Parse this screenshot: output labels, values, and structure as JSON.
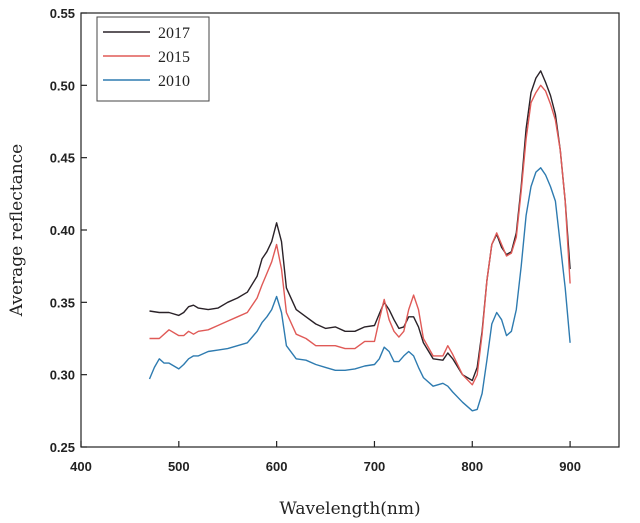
{
  "chart_data": {
    "type": "line",
    "xlabel": "Wavelength(nm)",
    "ylabel": "Average reflectance",
    "xlim": [
      400,
      950
    ],
    "ylim": [
      0.25,
      0.55
    ],
    "x_ticks": [
      400,
      500,
      600,
      700,
      800,
      900
    ],
    "y_ticks": [
      "0.25",
      "0.30",
      "0.35",
      "0.40",
      "0.45",
      "0.50",
      "0.55"
    ],
    "legend_position": "top-left",
    "grid": false,
    "series": [
      {
        "name": "2017",
        "color": "#2a2228",
        "x": [
          470,
          480,
          490,
          500,
          505,
          510,
          515,
          520,
          530,
          540,
          550,
          560,
          570,
          580,
          585,
          590,
          595,
          600,
          605,
          610,
          620,
          630,
          640,
          650,
          660,
          670,
          680,
          690,
          700,
          705,
          710,
          715,
          720,
          725,
          730,
          735,
          740,
          745,
          750,
          760,
          770,
          775,
          780,
          790,
          800,
          805,
          810,
          815,
          820,
          825,
          830,
          835,
          840,
          845,
          850,
          855,
          860,
          865,
          870,
          875,
          880,
          885,
          890,
          895,
          900
        ],
        "y": [
          0.344,
          0.343,
          0.343,
          0.341,
          0.343,
          0.347,
          0.348,
          0.346,
          0.345,
          0.346,
          0.35,
          0.353,
          0.357,
          0.368,
          0.38,
          0.385,
          0.392,
          0.405,
          0.392,
          0.36,
          0.345,
          0.34,
          0.335,
          0.332,
          0.333,
          0.33,
          0.33,
          0.333,
          0.334,
          0.342,
          0.35,
          0.345,
          0.338,
          0.332,
          0.333,
          0.34,
          0.34,
          0.333,
          0.322,
          0.311,
          0.31,
          0.315,
          0.311,
          0.3,
          0.296,
          0.305,
          0.33,
          0.365,
          0.39,
          0.397,
          0.388,
          0.383,
          0.385,
          0.398,
          0.43,
          0.47,
          0.495,
          0.505,
          0.51,
          0.502,
          0.493,
          0.48,
          0.455,
          0.42,
          0.373
        ]
      },
      {
        "name": "2015",
        "color": "#e05a57",
        "x": [
          470,
          480,
          490,
          500,
          505,
          510,
          515,
          520,
          530,
          540,
          550,
          560,
          570,
          580,
          585,
          590,
          595,
          600,
          605,
          610,
          620,
          630,
          640,
          650,
          660,
          670,
          680,
          690,
          700,
          705,
          710,
          715,
          720,
          725,
          730,
          735,
          740,
          745,
          750,
          760,
          770,
          775,
          780,
          790,
          800,
          805,
          810,
          815,
          820,
          825,
          830,
          835,
          840,
          845,
          850,
          855,
          860,
          865,
          870,
          875,
          880,
          885,
          890,
          895,
          900
        ],
        "y": [
          0.325,
          0.325,
          0.331,
          0.327,
          0.327,
          0.33,
          0.328,
          0.33,
          0.331,
          0.334,
          0.337,
          0.34,
          0.343,
          0.353,
          0.362,
          0.37,
          0.378,
          0.39,
          0.373,
          0.343,
          0.328,
          0.325,
          0.32,
          0.32,
          0.32,
          0.318,
          0.318,
          0.323,
          0.323,
          0.338,
          0.352,
          0.338,
          0.33,
          0.326,
          0.33,
          0.345,
          0.355,
          0.345,
          0.325,
          0.313,
          0.313,
          0.32,
          0.314,
          0.3,
          0.293,
          0.3,
          0.328,
          0.365,
          0.39,
          0.398,
          0.39,
          0.382,
          0.384,
          0.395,
          0.427,
          0.463,
          0.488,
          0.495,
          0.5,
          0.496,
          0.487,
          0.476,
          0.455,
          0.42,
          0.363
        ]
      },
      {
        "name": "2010",
        "color": "#2e7bb0",
        "x": [
          470,
          475,
          480,
          485,
          490,
          495,
          500,
          505,
          510,
          515,
          520,
          530,
          540,
          550,
          560,
          570,
          580,
          585,
          590,
          595,
          600,
          605,
          610,
          620,
          630,
          640,
          650,
          660,
          670,
          680,
          690,
          700,
          705,
          710,
          715,
          720,
          725,
          730,
          735,
          740,
          745,
          750,
          760,
          770,
          775,
          780,
          790,
          800,
          805,
          810,
          815,
          820,
          825,
          830,
          835,
          840,
          845,
          850,
          855,
          860,
          865,
          870,
          875,
          880,
          885,
          890,
          895,
          900
        ],
        "y": [
          0.297,
          0.305,
          0.311,
          0.308,
          0.308,
          0.306,
          0.304,
          0.307,
          0.311,
          0.313,
          0.313,
          0.316,
          0.317,
          0.318,
          0.32,
          0.322,
          0.33,
          0.336,
          0.34,
          0.345,
          0.354,
          0.343,
          0.32,
          0.311,
          0.31,
          0.307,
          0.305,
          0.303,
          0.303,
          0.304,
          0.306,
          0.307,
          0.311,
          0.319,
          0.316,
          0.309,
          0.309,
          0.313,
          0.316,
          0.313,
          0.305,
          0.298,
          0.292,
          0.294,
          0.292,
          0.288,
          0.281,
          0.275,
          0.276,
          0.287,
          0.31,
          0.335,
          0.343,
          0.338,
          0.327,
          0.33,
          0.345,
          0.375,
          0.41,
          0.43,
          0.44,
          0.443,
          0.438,
          0.43,
          0.42,
          0.39,
          0.36,
          0.322
        ]
      }
    ]
  }
}
